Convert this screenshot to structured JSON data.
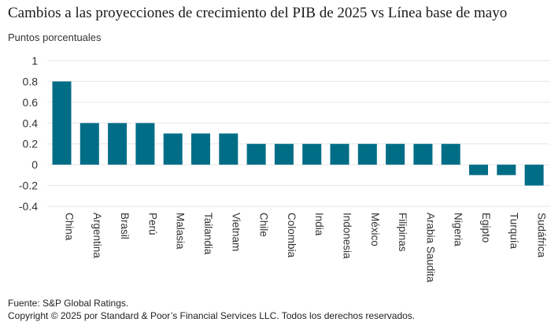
{
  "chart_data": {
    "type": "bar",
    "title": "Cambios a las proyecciones de crecimiento del PIB de 2025 vs Línea base de mayo",
    "ylabel": "Puntos porcentuales",
    "xlabel": "",
    "categories": [
      "China",
      "Argentina",
      "Brasil",
      "Perú",
      "Malasia",
      "Tailandia",
      "Vietnam",
      "Chile",
      "Colombia",
      "India",
      "Indonesia",
      "México",
      "Filipinas",
      "Arabia Saudita",
      "Nigeria",
      "Egipto",
      "Turquía",
      "Sudáfrica"
    ],
    "values": [
      0.8,
      0.4,
      0.4,
      0.4,
      0.3,
      0.3,
      0.3,
      0.2,
      0.2,
      0.2,
      0.2,
      0.2,
      0.2,
      0.2,
      0.2,
      -0.1,
      -0.1,
      -0.2
    ],
    "ylim": [
      -0.4,
      1
    ],
    "yticks": [
      1,
      0.8,
      0.6,
      0.4,
      0.2,
      0,
      -0.2,
      -0.4
    ],
    "ytick_labels": [
      "1",
      "0.8",
      "0.6",
      "0.4",
      "0.2",
      "0",
      "-0.2",
      "-0.4"
    ],
    "grid": true,
    "bar_color": "#006d87",
    "grid_color": "#e6e6e6"
  },
  "footer": {
    "source": "Fuente: S&P Global Ratings.",
    "copyright": "Copyright © 2025 por Standard & Poor’s Financial Services LLC. Todos los derechos reservados."
  }
}
